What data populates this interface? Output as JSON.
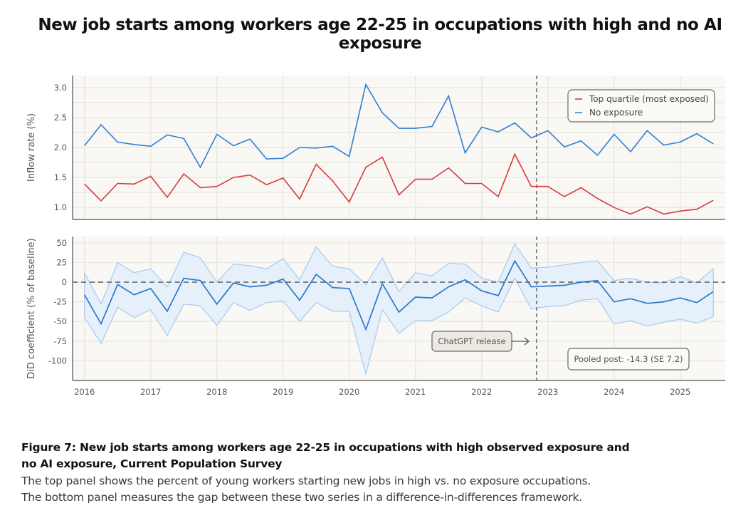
{
  "title": "New job starts among workers age 22-25 in occupations with high and no AI exposure",
  "caption": {
    "title_line1": "Figure 7: New job starts among workers age 22-25 in occupations with high observed exposure and",
    "title_line2": "no AI exposure, Current Population Survey",
    "body_line1": "The top panel shows the percent of young workers starting new jobs in high vs. no exposure occupations.",
    "body_line2": "The bottom panel measures the gap between these two series in a difference-in-differences framework."
  },
  "colors": {
    "top_quartile": "#d63b3b",
    "no_exposure": "#2f7fd6",
    "did_line": "#2a78c8",
    "ci_band_fill": "#e6f0fb",
    "ci_band_edge": "#aacdf0",
    "plot_bg": "#f9f8f5",
    "grid": "#ebe8e1",
    "axis": "#6e6e6e"
  },
  "chart_data": [
    {
      "type": "line",
      "panel": "top",
      "ylabel": "Inflow rate (%)",
      "ylim": [
        0.8,
        3.2
      ],
      "yticks": [
        1.0,
        1.5,
        2.0,
        2.5,
        3.0
      ],
      "ytick_labels": [
        "1.0",
        "1.5",
        "2.0",
        "2.5",
        "3.0"
      ],
      "grid": true,
      "legend_position": "top-right",
      "x_start": 2016.0,
      "x_step": 0.25,
      "series": [
        {
          "name": "Top quartile (most exposed)",
          "color_key": "top_quartile",
          "values": [
            1.39,
            1.11,
            1.4,
            1.39,
            1.52,
            1.17,
            1.56,
            1.33,
            1.35,
            1.5,
            1.54,
            1.38,
            1.49,
            1.14,
            1.72,
            1.44,
            1.09,
            1.67,
            1.84,
            1.21,
            1.47,
            1.47,
            1.66,
            1.4,
            1.4,
            1.18,
            1.89,
            1.35,
            1.35,
            1.18,
            1.33,
            1.15,
            1.0,
            0.89,
            1.01,
            0.89,
            0.94,
            0.97,
            1.12
          ]
        },
        {
          "name": "No exposure",
          "color_key": "no_exposure",
          "values": [
            2.03,
            2.38,
            2.09,
            2.05,
            2.02,
            2.21,
            2.15,
            1.67,
            2.22,
            2.03,
            2.14,
            1.81,
            1.82,
            2.0,
            1.99,
            2.02,
            1.85,
            3.05,
            2.58,
            2.32,
            2.32,
            2.35,
            2.86,
            1.91,
            2.34,
            2.26,
            2.41,
            2.16,
            2.28,
            2.01,
            2.11,
            1.87,
            2.22,
            1.93,
            2.28,
            2.04,
            2.09,
            2.23,
            2.06
          ]
        }
      ],
      "vline": {
        "x": 2022.83,
        "style": "dashed"
      }
    },
    {
      "type": "line",
      "panel": "bottom",
      "ylabel": "DiD coefficient (% of baseline)",
      "ylim": [
        -125,
        58
      ],
      "yticks": [
        -100,
        -75,
        -50,
        -25,
        0,
        25,
        50
      ],
      "ytick_labels": [
        "-100",
        "-75",
        "-50",
        "-25",
        "0",
        "25",
        "50"
      ],
      "xticks": [
        2016,
        2017,
        2018,
        2019,
        2020,
        2021,
        2022,
        2023,
        2024,
        2025
      ],
      "xtick_labels": [
        "2016",
        "2017",
        "2018",
        "2019",
        "2020",
        "2021",
        "2022",
        "2023",
        "2024",
        "2025"
      ],
      "xlim": [
        2015.82,
        2025.68
      ],
      "grid": true,
      "x_start": 2016.0,
      "x_step": 0.25,
      "series": [
        {
          "name": "DiD coefficient",
          "values": [
            -16,
            -53,
            -3,
            -16,
            -8,
            -37,
            5,
            2,
            -28,
            -1,
            -6,
            -4,
            4,
            -23,
            10,
            -7,
            -8,
            -60,
            -2,
            -38,
            -19,
            -20,
            -6,
            3,
            -11,
            -17,
            27,
            -6,
            -5,
            -4,
            0,
            2,
            -25,
            -21,
            -27,
            -25,
            -20,
            -26,
            -12
          ]
        },
        {
          "name": "Upper CI",
          "values": [
            12,
            -28,
            25,
            12,
            17,
            -6,
            38,
            31,
            0,
            23,
            21,
            17,
            30,
            3,
            45,
            20,
            17,
            -3,
            31,
            -12,
            12,
            8,
            24,
            23,
            5,
            0,
            49,
            18,
            19,
            22,
            25,
            27,
            2,
            5,
            0,
            -1,
            7,
            -1,
            17
          ]
        },
        {
          "name": "Lower CI",
          "values": [
            -45,
            -78,
            -32,
            -45,
            -35,
            -68,
            -28,
            -30,
            -55,
            -26,
            -36,
            -26,
            -24,
            -50,
            -26,
            -37,
            -37,
            -117,
            -35,
            -65,
            -49,
            -49,
            -38,
            -20,
            -30,
            -38,
            5,
            -34,
            -31,
            -30,
            -23,
            -21,
            -53,
            -49,
            -56,
            -51,
            -47,
            -52,
            -44
          ]
        }
      ],
      "hline": {
        "y": 0,
        "style": "dashed"
      },
      "vline": {
        "x": 2022.83,
        "style": "dashed"
      },
      "annotations": [
        {
          "text": "ChatGPT release",
          "arrow": "right",
          "points_to_x": 2022.83
        },
        {
          "text": "Pooled post: -14.3 (SE 7.2)"
        }
      ]
    }
  ]
}
